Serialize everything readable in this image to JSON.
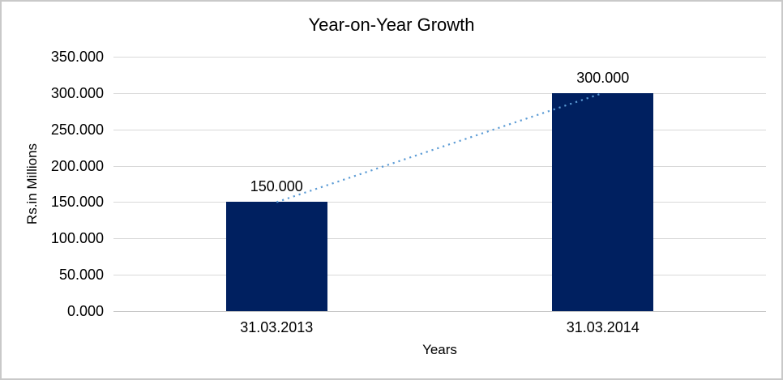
{
  "chart_data": {
    "type": "bar",
    "title": "Year-on-Year Growth",
    "xlabel": "Years",
    "ylabel": "Rs.in Millions",
    "categories": [
      "31.03.2013",
      "31.03.2014"
    ],
    "values": [
      150,
      300
    ],
    "value_labels": [
      "150.000",
      "300.000"
    ],
    "y_tick_values": [
      0,
      50,
      100,
      150,
      200,
      250,
      300,
      350
    ],
    "y_tick_labels": [
      "0.000",
      "50.000",
      "100.000",
      "150.000",
      "200.000",
      "250.000",
      "300.000",
      "350.000"
    ],
    "ylim": [
      0,
      350
    ],
    "grid": true,
    "legend": false,
    "trendline": {
      "type": "linear",
      "style": "dotted",
      "from_category": 0,
      "to_category": 1
    },
    "colors": {
      "bar": "#002060",
      "trendline": "#5b9bd5",
      "gridline": "#d9d9d9",
      "axis_line": "#c6c6c6",
      "text": "#000000",
      "border": "#c9c9c9"
    }
  }
}
